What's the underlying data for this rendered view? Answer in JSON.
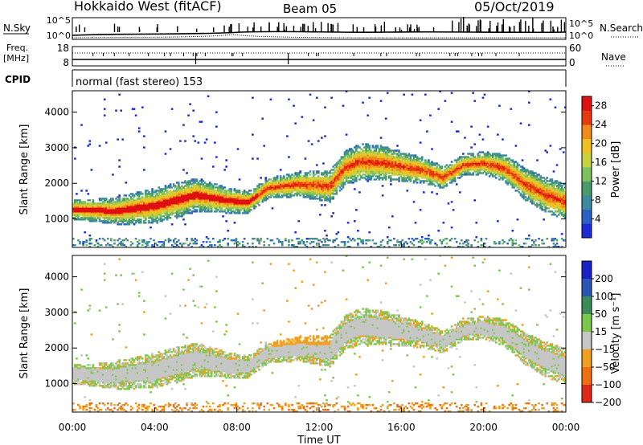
{
  "header": {
    "station": "Hokkaido West (fitACF)",
    "beam": "Beam 05",
    "date": "05/Oct/2019"
  },
  "panels": {
    "nsky": {
      "label": "N.Sky",
      "right_label": "N.Search",
      "left_ticks": [
        "10^5",
        "10^0"
      ],
      "right_ticks": [
        "10^5",
        "10^0"
      ]
    },
    "freq": {
      "label": "Freq.",
      "unit": "[MHz]",
      "right_label": "Nave",
      "left_ticks": [
        "18",
        "8"
      ],
      "right_ticks": [
        "60",
        "0"
      ]
    },
    "cpid": {
      "label": "CPID",
      "mode_text": "normal (fast stereo) 153"
    }
  },
  "chart_data": [
    {
      "type": "heatmap",
      "name": "power",
      "ylabel": "Slant Range [km]",
      "xlabel": "",
      "y_ticks": [
        1000,
        2000,
        3000,
        4000
      ],
      "ylim": [
        200,
        4600
      ],
      "xlim": [
        0,
        24
      ],
      "colorbar": {
        "label": "Power [dB]",
        "ticks": [
          4,
          8,
          12,
          16,
          20,
          24,
          28
        ],
        "range": [
          0,
          30
        ],
        "colors": [
          "#1c2ad8",
          "#2a60c8",
          "#3a8aa0",
          "#4a9a6a",
          "#7cc060",
          "#c8d040",
          "#f0c020",
          "#f08a18",
          "#e83a10",
          "#e01010"
        ]
      },
      "band_center_km": [
        [
          0,
          1250
        ],
        [
          2,
          1200
        ],
        [
          4,
          1350
        ],
        [
          6,
          1650
        ],
        [
          7.5,
          1500
        ],
        [
          8.5,
          1450
        ],
        [
          9.5,
          1850
        ],
        [
          11,
          1950
        ],
        [
          12.5,
          1900
        ],
        [
          13.2,
          2400
        ],
        [
          14,
          2600
        ],
        [
          15,
          2550
        ],
        [
          16,
          2450
        ],
        [
          17,
          2350
        ],
        [
          18,
          2150
        ],
        [
          19,
          2500
        ],
        [
          20,
          2550
        ],
        [
          21,
          2400
        ],
        [
          22,
          1950
        ],
        [
          23,
          1650
        ],
        [
          24,
          1450
        ]
      ]
    },
    {
      "type": "heatmap",
      "name": "velocity",
      "ylabel": "Slant Range [km]",
      "xlabel": "Time UT",
      "x_ticks": [
        "00:00",
        "04:00",
        "08:00",
        "12:00",
        "16:00",
        "20:00",
        "00:00"
      ],
      "y_ticks": [
        1000,
        2000,
        3000,
        4000
      ],
      "ylim": [
        200,
        4600
      ],
      "xlim": [
        0,
        24
      ],
      "colorbar": {
        "label": "Velocity [m s⁻¹]",
        "ticks": [
          200,
          100,
          50,
          15,
          -15,
          -50,
          -100,
          -200
        ],
        "range": [
          -250,
          250
        ],
        "colors": [
          "#1a22c8",
          "#2a56b8",
          "#3c8c5a",
          "#7cc84c",
          "#c6c6c6",
          "#f0a020",
          "#f07010",
          "#e02818"
        ]
      }
    }
  ],
  "colors": {
    "axis": "#000000",
    "ground_scatter": "#c6c6c6"
  }
}
